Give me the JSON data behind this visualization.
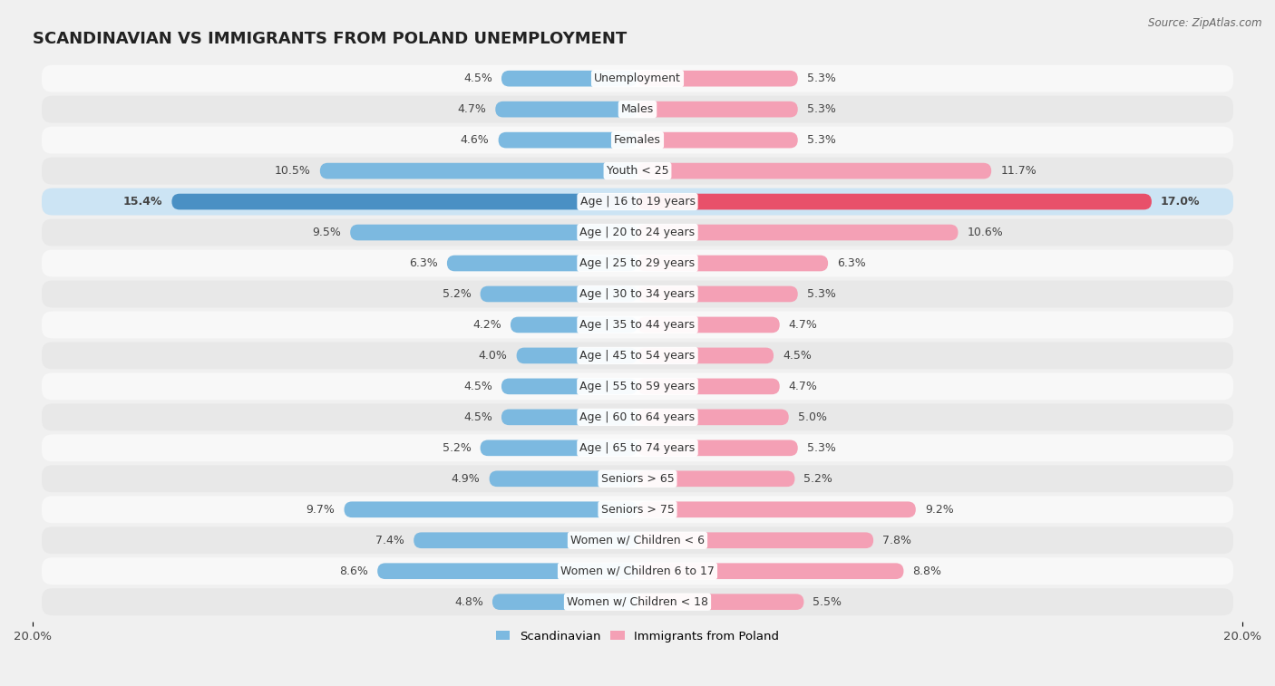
{
  "title": "SCANDINAVIAN VS IMMIGRANTS FROM POLAND UNEMPLOYMENT",
  "source": "Source: ZipAtlas.com",
  "categories": [
    "Unemployment",
    "Males",
    "Females",
    "Youth < 25",
    "Age | 16 to 19 years",
    "Age | 20 to 24 years",
    "Age | 25 to 29 years",
    "Age | 30 to 34 years",
    "Age | 35 to 44 years",
    "Age | 45 to 54 years",
    "Age | 55 to 59 years",
    "Age | 60 to 64 years",
    "Age | 65 to 74 years",
    "Seniors > 65",
    "Seniors > 75",
    "Women w/ Children < 6",
    "Women w/ Children 6 to 17",
    "Women w/ Children < 18"
  ],
  "scandinavian": [
    4.5,
    4.7,
    4.6,
    10.5,
    15.4,
    9.5,
    6.3,
    5.2,
    4.2,
    4.0,
    4.5,
    4.5,
    5.2,
    4.9,
    9.7,
    7.4,
    8.6,
    4.8
  ],
  "immigrants": [
    5.3,
    5.3,
    5.3,
    11.7,
    17.0,
    10.6,
    6.3,
    5.3,
    4.7,
    4.5,
    4.7,
    5.0,
    5.3,
    5.2,
    9.2,
    7.8,
    8.8,
    5.5
  ],
  "scand_color": "#7cb9e0",
  "immig_color": "#f4a0b5",
  "scand_color_highlight": "#4a90c4",
  "immig_color_highlight": "#e8506a",
  "axis_limit": 20.0,
  "bg_color": "#f0f0f0",
  "row_color_odd": "#f8f8f8",
  "row_color_even": "#e8e8e8",
  "highlight_row_color": "#cce4f4",
  "title_fontsize": 13,
  "label_fontsize": 9,
  "value_fontsize": 9,
  "tick_fontsize": 9.5
}
